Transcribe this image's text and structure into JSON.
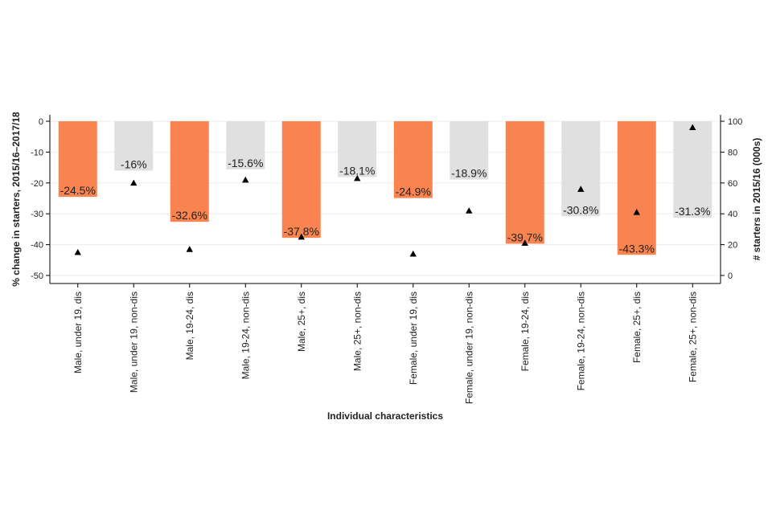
{
  "chart_data": {
    "type": "bar",
    "categories": [
      "Male, under 19, dis",
      "Male, under 19, non-dis",
      "Male, 19-24, dis",
      "Male, 19-24, non-dis",
      "Male, 25+, dis",
      "Male, 25+, non-dis",
      "Female, under 19, dis",
      "Female, under 19, non-dis",
      "Female, 19-24, dis",
      "Female, 19-24, non-dis",
      "Female, 25+, dis",
      "Female, 25+, non-dis"
    ],
    "series": [
      {
        "name": "% change in starters",
        "axis": "left",
        "values": [
          -24.5,
          -16,
          -32.6,
          -15.6,
          -37.8,
          -18.1,
          -24.9,
          -18.9,
          -39.7,
          -30.8,
          -43.3,
          -31.3
        ],
        "labels": [
          "-24.5%",
          "-16%",
          "-32.6%",
          "-15.6%",
          "-37.8%",
          "-18.1%",
          "-24.9%",
          "-18.9%",
          "-39.7%",
          "-30.8%",
          "-43.3%",
          "-31.3%"
        ],
        "highlight": [
          true,
          false,
          true,
          false,
          true,
          false,
          true,
          false,
          true,
          false,
          true,
          false
        ]
      },
      {
        "name": "# starters in 2015/16 (000s)",
        "type": "scatter",
        "marker": "triangle",
        "axis": "right",
        "values": [
          15,
          60,
          17,
          62,
          25,
          63,
          14,
          42,
          21,
          56,
          41,
          96
        ]
      }
    ],
    "title": "",
    "xlabel": "Individual characteristics",
    "ylabel": "% change in starters, 2015/16–2017/18",
    "y2label": "# starters in 2015/16 (000s)",
    "ylim": [
      -50,
      0
    ],
    "yticks": [
      0,
      -10,
      -20,
      -30,
      -40,
      -50
    ],
    "ytick_labels": [
      "0",
      "-10",
      "-20",
      "-30",
      "-40",
      "-50"
    ],
    "y2lim": [
      0,
      100
    ],
    "y2ticks": [
      0,
      20,
      40,
      60,
      80,
      100
    ],
    "y2tick_labels": [
      "0",
      "20",
      "40",
      "60",
      "80",
      "100"
    ],
    "grid": true,
    "colors": {
      "highlight": "#f9844f",
      "other": "#e0e0e0",
      "marker": "#000000",
      "axis": "#000000",
      "grid": "#eeeeee"
    }
  }
}
